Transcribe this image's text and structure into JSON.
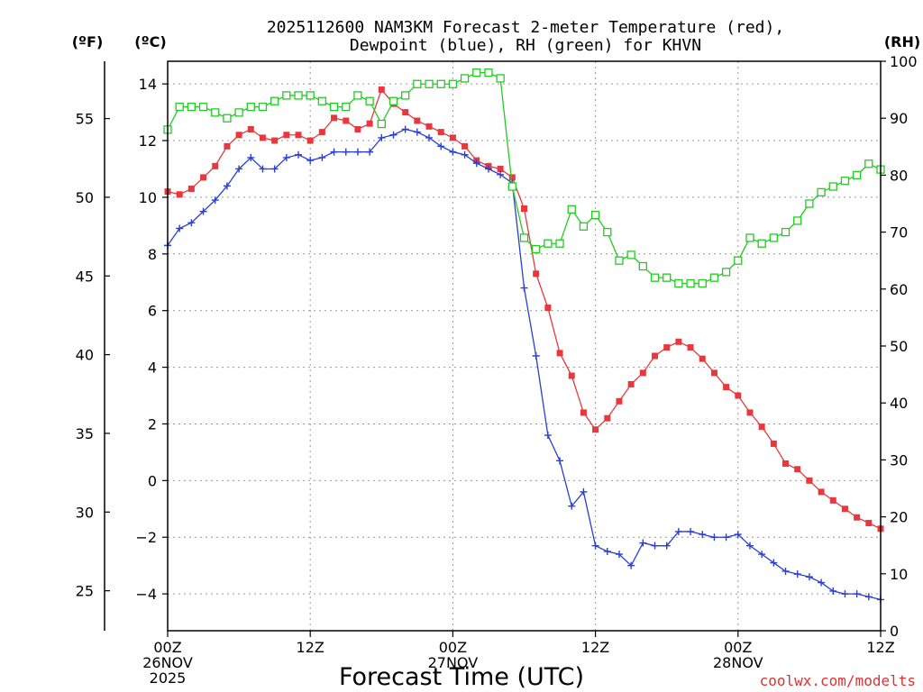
{
  "chart_data": {
    "type": "line",
    "title_line1": "2025112600 NAM3KM Forecast 2-meter Temperature (red),",
    "title_line2": "Dewpoint (blue), RH (green) for KHVN",
    "xlabel": "Forecast Time (UTC)",
    "watermark": "coolwx.com/modelts",
    "x_unit": "forecast hour",
    "xlim": [
      0,
      60
    ],
    "x_ticks": [
      {
        "hour": 0,
        "line1": "00Z",
        "line2": "26NOV",
        "line3": "2025"
      },
      {
        "hour": 12,
        "line1": "12Z",
        "line2": "",
        "line3": ""
      },
      {
        "hour": 24,
        "line1": "00Z",
        "line2": "27NOV",
        "line3": ""
      },
      {
        "hour": 36,
        "line1": "12Z",
        "line2": "",
        "line3": ""
      },
      {
        "hour": 48,
        "line1": "00Z",
        "line2": "28NOV",
        "line3": ""
      },
      {
        "hour": 60,
        "line1": "12Z",
        "line2": "",
        "line3": ""
      }
    ],
    "axes": {
      "celsius": {
        "unit_label": "(ºC)",
        "ylim": [
          -5.3,
          14.8
        ],
        "ticks": [
          "14",
          "12",
          "10",
          "8",
          "6",
          "4",
          "2",
          "0",
          "−2",
          "−4"
        ],
        "tick_values": [
          14,
          12,
          10,
          8,
          6,
          4,
          2,
          0,
          -2,
          -4
        ]
      },
      "fahrenheit": {
        "unit_label": "(ºF)",
        "ticks": [
          "55",
          "50",
          "45",
          "40",
          "35",
          "30",
          "25"
        ],
        "tick_values": [
          55,
          50,
          45,
          40,
          35,
          30,
          25
        ]
      },
      "rh": {
        "unit_label": "(RH)",
        "ylim": [
          0,
          100
        ],
        "ticks": [
          "100",
          "90",
          "80",
          "70",
          "60",
          "50",
          "40",
          "30",
          "20",
          "10",
          "0"
        ],
        "tick_values": [
          100,
          90,
          80,
          70,
          60,
          50,
          40,
          30,
          20,
          10,
          0
        ]
      }
    },
    "x": [
      0,
      1,
      2,
      3,
      4,
      5,
      6,
      7,
      8,
      9,
      10,
      11,
      12,
      13,
      14,
      15,
      16,
      17,
      18,
      19,
      20,
      21,
      22,
      23,
      24,
      25,
      26,
      27,
      28,
      29,
      30,
      31,
      32,
      33,
      34,
      35,
      36,
      37,
      38,
      39,
      40,
      41,
      42,
      43,
      44,
      45,
      46,
      47,
      48,
      49,
      50,
      51,
      52,
      53,
      54,
      55,
      56,
      57,
      58,
      59,
      60
    ],
    "series": [
      {
        "name": "Temperature",
        "axis": "celsius",
        "color": "#e8383d",
        "marker": "filled-square",
        "values": [
          10.2,
          10.1,
          10.3,
          10.7,
          11.1,
          11.8,
          12.2,
          12.4,
          12.1,
          12.0,
          12.2,
          12.2,
          12.0,
          12.3,
          12.8,
          12.7,
          12.4,
          12.6,
          13.8,
          13.3,
          13.0,
          12.7,
          12.5,
          12.3,
          12.1,
          11.8,
          11.3,
          11.1,
          11.0,
          10.7,
          9.6,
          7.3,
          6.1,
          4.5,
          3.7,
          2.4,
          1.8,
          2.2,
          2.8,
          3.4,
          3.8,
          4.4,
          4.7,
          4.9,
          4.7,
          4.3,
          3.8,
          3.3,
          3.0,
          2.4,
          1.9,
          1.3,
          0.6,
          0.4,
          0.0,
          -0.4,
          -0.7,
          -1.0,
          -1.3,
          -1.5,
          -1.7
        ]
      },
      {
        "name": "Dewpoint",
        "axis": "celsius",
        "color": "#2a3fd4",
        "marker": "plus",
        "values": [
          8.3,
          8.9,
          9.1,
          9.5,
          9.9,
          10.4,
          11.0,
          11.4,
          11.0,
          11.0,
          11.4,
          11.5,
          11.3,
          11.4,
          11.6,
          11.6,
          11.6,
          11.6,
          12.1,
          12.2,
          12.4,
          12.3,
          12.1,
          11.8,
          11.6,
          11.5,
          11.2,
          11.0,
          10.8,
          10.5,
          6.8,
          4.4,
          1.6,
          0.7,
          -0.9,
          -0.4,
          -2.3,
          -2.5,
          -2.6,
          -3.0,
          -2.2,
          -2.3,
          -2.3,
          -1.8,
          -1.8,
          -1.9,
          -2.0,
          -2.0,
          -1.9,
          -2.3,
          -2.6,
          -2.9,
          -3.2,
          -3.3,
          -3.4,
          -3.6,
          -3.9,
          -4.0,
          -4.0,
          -4.1,
          -4.2
        ]
      },
      {
        "name": "RH",
        "axis": "rh",
        "color": "#22cc22",
        "marker": "open-square",
        "values": [
          88,
          92,
          92,
          92,
          91,
          90,
          91,
          92,
          92,
          93,
          94,
          94,
          94,
          93,
          92,
          92,
          94,
          93,
          89,
          93,
          94,
          96,
          96,
          96,
          96,
          97,
          98,
          98,
          97,
          78,
          69,
          67,
          68,
          68,
          74,
          71,
          73,
          70,
          65,
          66,
          64,
          62,
          62,
          61,
          61,
          61,
          62,
          63,
          65,
          69,
          68,
          69,
          70,
          72,
          75,
          77,
          78,
          79,
          80,
          82,
          81
        ]
      }
    ]
  }
}
